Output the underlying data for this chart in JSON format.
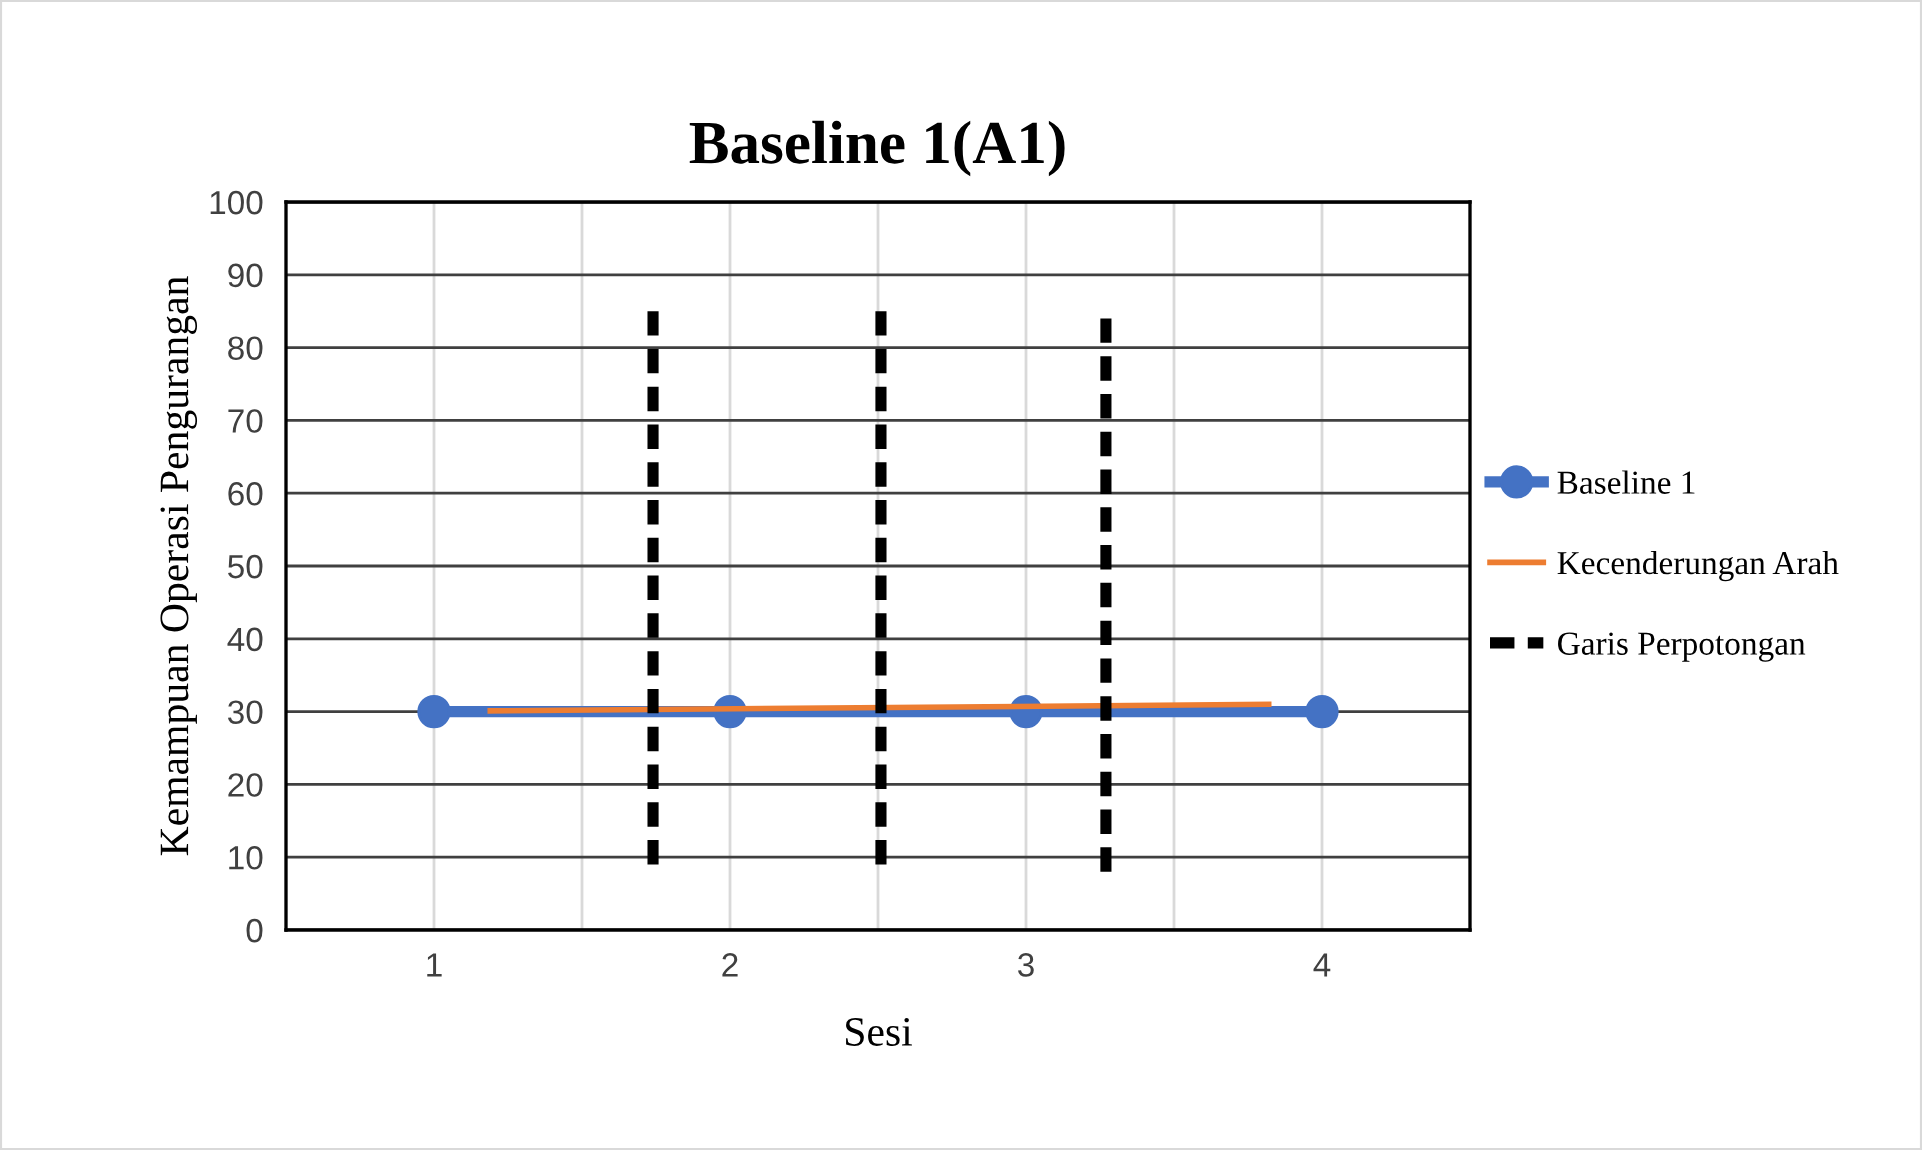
{
  "chart_data": {
    "type": "line",
    "title": "Baseline 1(A1)",
    "xlabel": "Sesi",
    "ylabel": "Kemampuan Operasi Pengurangan",
    "xlim": [
      0.5,
      4.5
    ],
    "xticks": [
      1,
      {
        "value": 1.5,
        "label": null
      },
      2,
      {
        "value": 2.5,
        "label": null
      },
      3,
      {
        "value": 3.5,
        "label": null
      },
      4
    ],
    "ylim": [
      0,
      100
    ],
    "yticks": [
      0,
      10,
      20,
      30,
      40,
      50,
      60,
      70,
      80,
      90,
      100
    ],
    "grid": true,
    "legend": "right",
    "series": [
      {
        "name": "Baseline 1",
        "color": "#4472c4",
        "x": [
          1,
          2,
          3,
          4
        ],
        "values": [
          30,
          30,
          30,
          30
        ],
        "marker": "circle"
      },
      {
        "name": "Kecenderungan Arah",
        "color": "#ed7d31",
        "x": [
          1.19,
          3.82
        ],
        "values": [
          30.1,
          31
        ]
      },
      {
        "name": "Garis Perpotongan",
        "color": "#000000",
        "line_style": "dashed",
        "x": [
          1.74,
          1.74,
          2.1,
          2.51,
          2.51,
          2.9,
          3.27,
          3.27
        ],
        "values": [
          9,
          86,
          null,
          9,
          86,
          null,
          8,
          85
        ]
      }
    ]
  }
}
